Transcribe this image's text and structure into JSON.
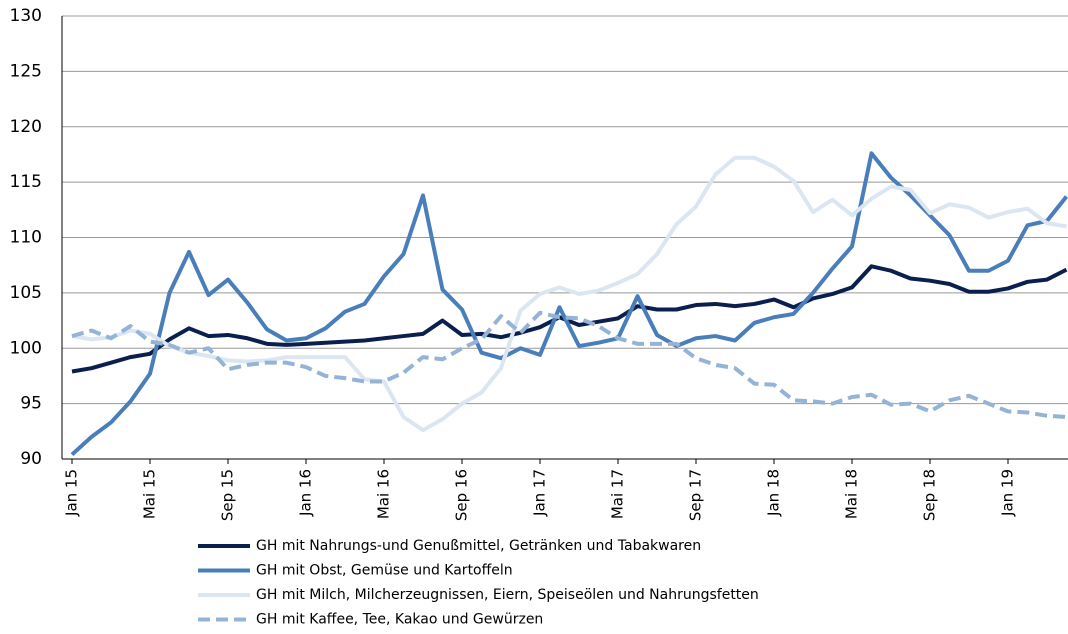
{
  "chart_data": {
    "type": "line",
    "categories": [
      "Jan 15",
      null,
      null,
      null,
      "Mai 15",
      null,
      null,
      null,
      "Sep 15",
      null,
      null,
      null,
      "Jan 16",
      null,
      null,
      null,
      "Mai 16",
      null,
      null,
      null,
      "Sep 16",
      null,
      null,
      null,
      "Jan 17",
      null,
      null,
      null,
      "Mai 17",
      null,
      null,
      null,
      "Sep 17",
      null,
      null,
      null,
      "Jan 18",
      null,
      null,
      null,
      "Mai 18",
      null,
      null,
      null,
      "Sep 18",
      null,
      null,
      null,
      "Jan 19",
      null,
      null,
      null
    ],
    "ylim": [
      90,
      130
    ],
    "yticks": [
      90,
      95,
      100,
      105,
      110,
      115,
      120,
      125,
      130
    ],
    "grid": true,
    "series": [
      {
        "name": "GH mit Nahrungs-und Genußmittel, Getränken und Tabakwaren",
        "color": "#0b1f4f",
        "dashed": false,
        "values": [
          97.9,
          98.2,
          98.7,
          99.2,
          99.5,
          100.8,
          101.8,
          101.1,
          101.2,
          100.9,
          100.4,
          100.3,
          100.4,
          100.5,
          100.6,
          100.7,
          100.9,
          101.1,
          101.3,
          102.5,
          101.2,
          101.3,
          101.0,
          101.4,
          101.9,
          102.8,
          102.1,
          102.4,
          102.7,
          103.8,
          103.5,
          103.5,
          103.9,
          104.0,
          103.8,
          104.0,
          104.4,
          103.7,
          104.5,
          104.9,
          105.5,
          107.4,
          107.0,
          106.3,
          106.1,
          105.8,
          105.1,
          105.1,
          105.4,
          106.0,
          106.2,
          107.1
        ]
      },
      {
        "name": "GH mit Obst, Gemüse und Kartoffeln",
        "color": "#4a7ebb",
        "dashed": false,
        "values": [
          90.4,
          92.0,
          93.3,
          95.2,
          97.7,
          105.0,
          108.7,
          104.8,
          106.2,
          104.1,
          101.7,
          100.7,
          100.9,
          101.8,
          103.3,
          104.0,
          106.5,
          108.5,
          113.8,
          105.3,
          103.5,
          99.6,
          99.1,
          100.0,
          99.4,
          103.7,
          100.2,
          100.5,
          100.9,
          104.7,
          101.2,
          100.2,
          100.9,
          101.1,
          100.7,
          102.3,
          102.8,
          103.1,
          105.0,
          107.2,
          109.2,
          117.6,
          115.4,
          113.8,
          112.0,
          110.2,
          107.0,
          107.0,
          107.9,
          111.1,
          111.5,
          113.7
        ]
      },
      {
        "name": "GH mit Milch, Milcherzeugnissen, Eiern, Speiseölen und Nahrungsfetten",
        "color": "#dce6f2",
        "dashed": false,
        "values": [
          101.1,
          100.8,
          101.0,
          101.6,
          101.3,
          100.2,
          99.6,
          99.3,
          98.9,
          98.8,
          98.9,
          99.2,
          99.2,
          99.2,
          99.2,
          97.2,
          97.0,
          93.8,
          92.6,
          93.6,
          95.0,
          96.0,
          98.2,
          103.4,
          104.9,
          105.5,
          104.9,
          105.2,
          105.9,
          106.7,
          108.5,
          111.2,
          112.8,
          115.7,
          117.2,
          117.2,
          116.4,
          115.1,
          112.3,
          113.4,
          112.0,
          113.5,
          114.6,
          114.3,
          112.2,
          113.0,
          112.7,
          111.8,
          112.3,
          112.6,
          111.3,
          111.0
        ]
      },
      {
        "name": "GH mit Kaffee, Tee, Kakao und Gewürzen",
        "color": "#95b3d7",
        "dashed": true,
        "values": [
          101.1,
          101.6,
          100.9,
          102.0,
          100.6,
          100.3,
          99.6,
          100.0,
          98.1,
          98.5,
          98.7,
          98.7,
          98.3,
          97.5,
          97.3,
          97.0,
          97.0,
          97.8,
          99.2,
          99.0,
          100.0,
          100.8,
          102.9,
          101.4,
          103.2,
          102.8,
          102.7,
          102.0,
          100.9,
          100.4,
          100.4,
          100.4,
          99.1,
          98.5,
          98.2,
          96.8,
          96.7,
          95.3,
          95.2,
          95.0,
          95.6,
          95.8,
          94.9,
          95.0,
          94.3,
          95.3,
          95.7,
          95.0,
          94.3,
          94.2,
          93.9,
          93.8
        ]
      }
    ]
  }
}
